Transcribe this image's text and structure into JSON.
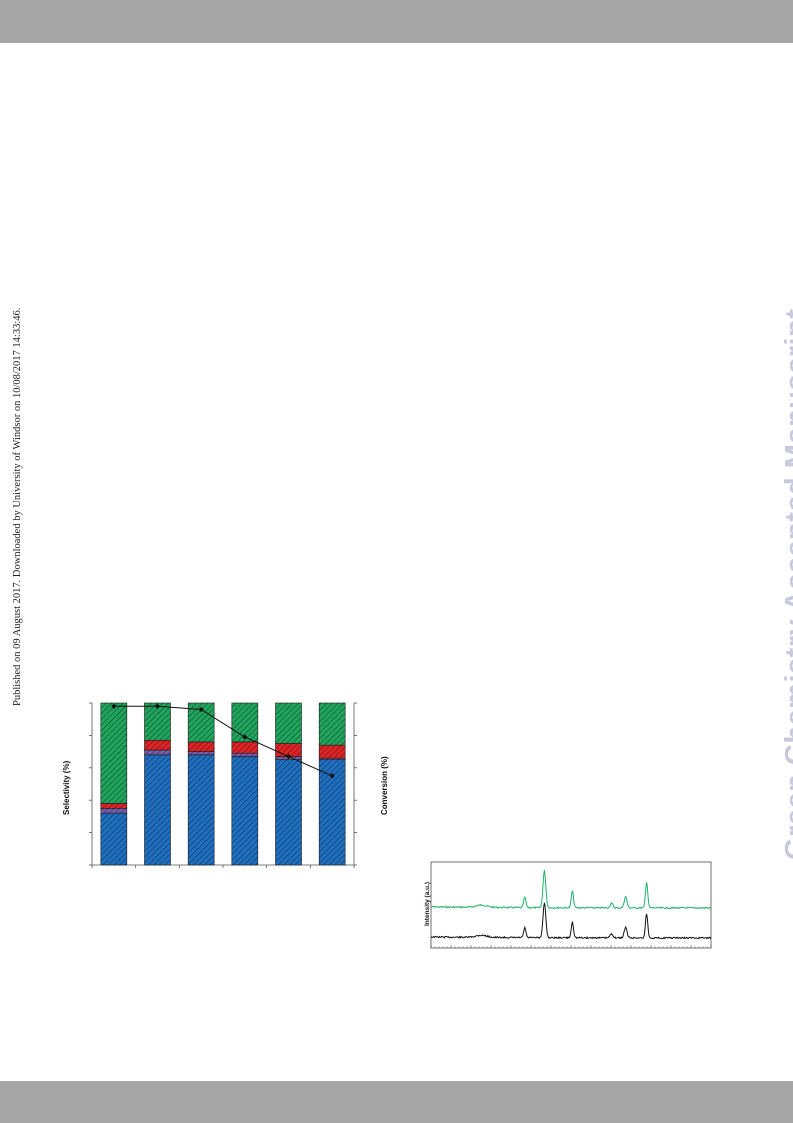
{
  "page": {
    "side_note": "Published on 09 August 2017. Downloaded by University of Windsor on 10/08/2017 14:33:46.",
    "watermark": "Green Chemistry Accepted Manuscript"
  },
  "chart_data": [
    {
      "type": "bar",
      "stacked": true,
      "ylabel": "Selectivity (%)",
      "y2label": "Conversion (%)",
      "ylim": [
        0,
        100
      ],
      "colors": {
        "blue": "#1f6fc0",
        "purple": "#7a5ca8",
        "red": "#e32222",
        "green": "#20a65a",
        "line": "#111111"
      },
      "categories": [
        "",
        "",
        "",
        "",
        "",
        ""
      ],
      "series": [
        {
          "values": [
            32,
            68,
            68,
            67,
            65,
            65
          ]
        },
        {
          "values": [
            3,
            3,
            2,
            2,
            2,
            1
          ]
        },
        {
          "values": [
            3,
            6,
            6,
            7,
            8,
            8
          ]
        },
        {
          "values": [
            62,
            23,
            24,
            24,
            25,
            26
          ]
        }
      ],
      "line": {
        "values": [
          98,
          98,
          96,
          79,
          67,
          55
        ]
      }
    },
    {
      "type": "line",
      "ylabel": "Intensity (a.u.)",
      "colors": [
        "#1fb26b",
        "#111111"
      ]
    }
  ]
}
